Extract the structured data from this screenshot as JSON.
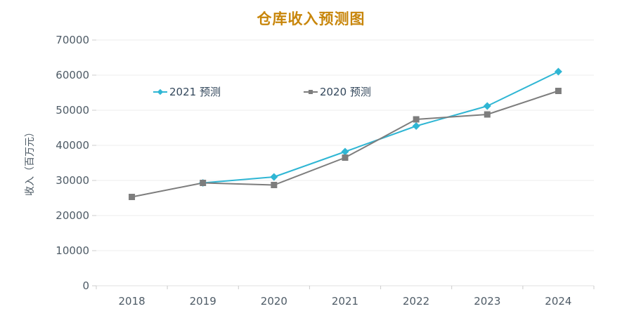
{
  "title": "仓库收入预测图",
  "chart_data": {
    "type": "line",
    "x": [
      "2018",
      "2019",
      "2020",
      "2021",
      "2022",
      "2023",
      "2024"
    ],
    "series": [
      {
        "name": "2021 预测",
        "color": "#2fb6d4",
        "marker": "diamond",
        "values": [
          null,
          29300,
          31000,
          38200,
          45500,
          51200,
          61000
        ]
      },
      {
        "name": "2020 预测",
        "color": "#7d7d7d",
        "marker": "square",
        "values": [
          25300,
          29300,
          28700,
          36500,
          47400,
          48800,
          55500
        ]
      }
    ],
    "ylabel": "收入（百万元）",
    "xlabel": "",
    "ylim": [
      0,
      70000
    ],
    "ytick_step": 10000,
    "yticks": [
      0,
      10000,
      20000,
      30000,
      40000,
      50000,
      60000,
      70000
    ],
    "grid": true,
    "legend_position": "inside-top-left"
  },
  "colors": {
    "title": "#c8860b",
    "grid": "#ededed",
    "axis": "#e0e0e0",
    "tick": "#cccccc",
    "tick_label": "#4e5b66",
    "legend_text": "#33475b"
  }
}
